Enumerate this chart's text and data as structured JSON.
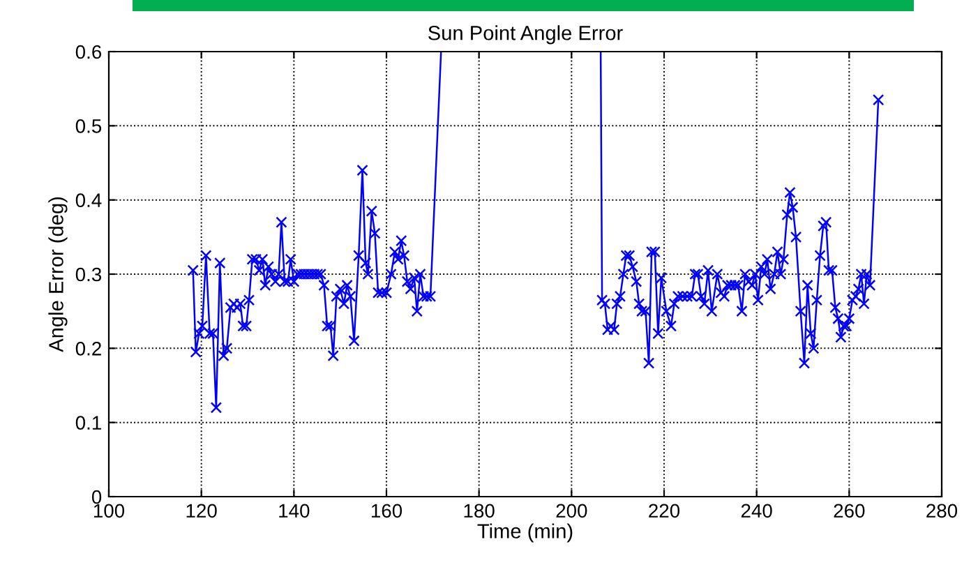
{
  "chart_data": {
    "type": "line",
    "title": "Sun Point Angle Error",
    "xlabel": "Time (min)",
    "ylabel": "Angle Error (deg)",
    "xlim": [
      100,
      280
    ],
    "ylim": [
      0,
      0.6
    ],
    "xticks": [
      100,
      120,
      140,
      160,
      180,
      200,
      220,
      240,
      260,
      280
    ],
    "yticks": [
      0,
      0.1,
      0.2,
      0.3,
      0.4,
      0.5,
      0.6
    ],
    "grid": true,
    "marker": "cross",
    "line_style": "solid",
    "series": [
      {
        "color": "#0000ff",
        "x": [
          118.2,
          118.8,
          119.5,
          120.2,
          121,
          121.8,
          122.5,
          123.2,
          124,
          124.8,
          125.5,
          126.3,
          127,
          127.7,
          128.4,
          129,
          129.7,
          130.3,
          131,
          131.8,
          132.5,
          133.2,
          133.8,
          134.5,
          135.2,
          136,
          136.7,
          137.3,
          138,
          138.7,
          139.3,
          140,
          140.8,
          141.5,
          142.2,
          143,
          143.7,
          144.4,
          145.1,
          145.8,
          146.5,
          147.2,
          147.9,
          148.5,
          149.2,
          150,
          150.8,
          151.5,
          152.2,
          153,
          154,
          154.8,
          155.5,
          156,
          156.8,
          157.5,
          158.2,
          159,
          160,
          161,
          161.8,
          162.5,
          163.2,
          163.8,
          164.5,
          165.2,
          166,
          166.6,
          167.3,
          168,
          168.7,
          169.5,
          null,
          206.6,
          207.2,
          207.8,
          208.5,
          209.2,
          209.8,
          210.5,
          211.2,
          211.8,
          212.5,
          213.2,
          214,
          214.6,
          215.2,
          216,
          216.7,
          217.3,
          218,
          218.7,
          219.4,
          220.5,
          221.5,
          222.2,
          223,
          224,
          225,
          226,
          226.7,
          227.3,
          228,
          228.7,
          229.5,
          230.3,
          231.5,
          232.3,
          233,
          233.7,
          234.5,
          235.3,
          236,
          236.8,
          237.5,
          238.3,
          239,
          239.7,
          240.3,
          241,
          241.7,
          242.3,
          243,
          243.8,
          244.5,
          245.2,
          245.8,
          246.6,
          247.2,
          247.8,
          248.5,
          249.5,
          250.3,
          251,
          251.7,
          252.3,
          253,
          253.7,
          254.4,
          255,
          255.6,
          256.3,
          257,
          257.6,
          258.2,
          258.8,
          259.4,
          260,
          260.7,
          261.4,
          262,
          262.6,
          263.2,
          263.8,
          264.5,
          266.3
        ],
        "values": [
          0.305,
          0.195,
          0.22,
          0.23,
          0.325,
          0.22,
          0.22,
          0.12,
          0.315,
          0.19,
          0.2,
          0.255,
          0.26,
          0.255,
          0.26,
          0.23,
          0.23,
          0.265,
          0.32,
          0.32,
          0.305,
          0.32,
          0.285,
          0.31,
          0.3,
          0.29,
          0.3,
          0.37,
          0.29,
          0.29,
          0.32,
          0.29,
          0.3,
          0.3,
          0.3,
          0.3,
          0.3,
          0.3,
          0.3,
          0.3,
          0.285,
          0.23,
          0.23,
          0.19,
          0.27,
          0.28,
          0.26,
          0.285,
          0.27,
          0.21,
          0.325,
          0.44,
          0.315,
          0.3,
          0.385,
          0.355,
          0.275,
          0.275,
          0.275,
          0.3,
          0.33,
          0.32,
          0.345,
          0.325,
          0.29,
          0.28,
          0.295,
          0.25,
          0.3,
          0.27,
          0.27,
          0.27,
          null,
          0.265,
          0.26,
          0.225,
          0.23,
          0.225,
          0.26,
          0.27,
          0.3,
          0.325,
          0.325,
          0.31,
          0.29,
          0.26,
          0.25,
          0.25,
          0.18,
          0.33,
          0.33,
          0.22,
          0.295,
          0.25,
          0.23,
          0.26,
          0.27,
          0.27,
          0.27,
          0.27,
          0.3,
          0.3,
          0.27,
          0.26,
          0.305,
          0.25,
          0.3,
          0.275,
          0.27,
          0.285,
          0.285,
          0.285,
          0.285,
          0.25,
          0.3,
          0.29,
          0.285,
          0.3,
          0.265,
          0.31,
          0.3,
          0.32,
          0.28,
          0.3,
          0.33,
          0.3,
          0.32,
          0.38,
          0.41,
          0.39,
          0.35,
          0.25,
          0.18,
          0.285,
          0.22,
          0.2,
          0.265,
          0.325,
          0.365,
          0.37,
          0.305,
          0.305,
          0.255,
          0.24,
          0.215,
          0.23,
          0.23,
          0.24,
          0.265,
          0.27,
          0.28,
          0.3,
          0.26,
          0.3,
          0.285,
          0.535
        ]
      },
      {
        "color": "#0000ff",
        "marker": "none",
        "x": [
          169.5,
          171.8,
          null,
          206.3,
          206.6
        ],
        "values": [
          0.27,
          0.6,
          null,
          0.6,
          0.265
        ]
      }
    ]
  }
}
